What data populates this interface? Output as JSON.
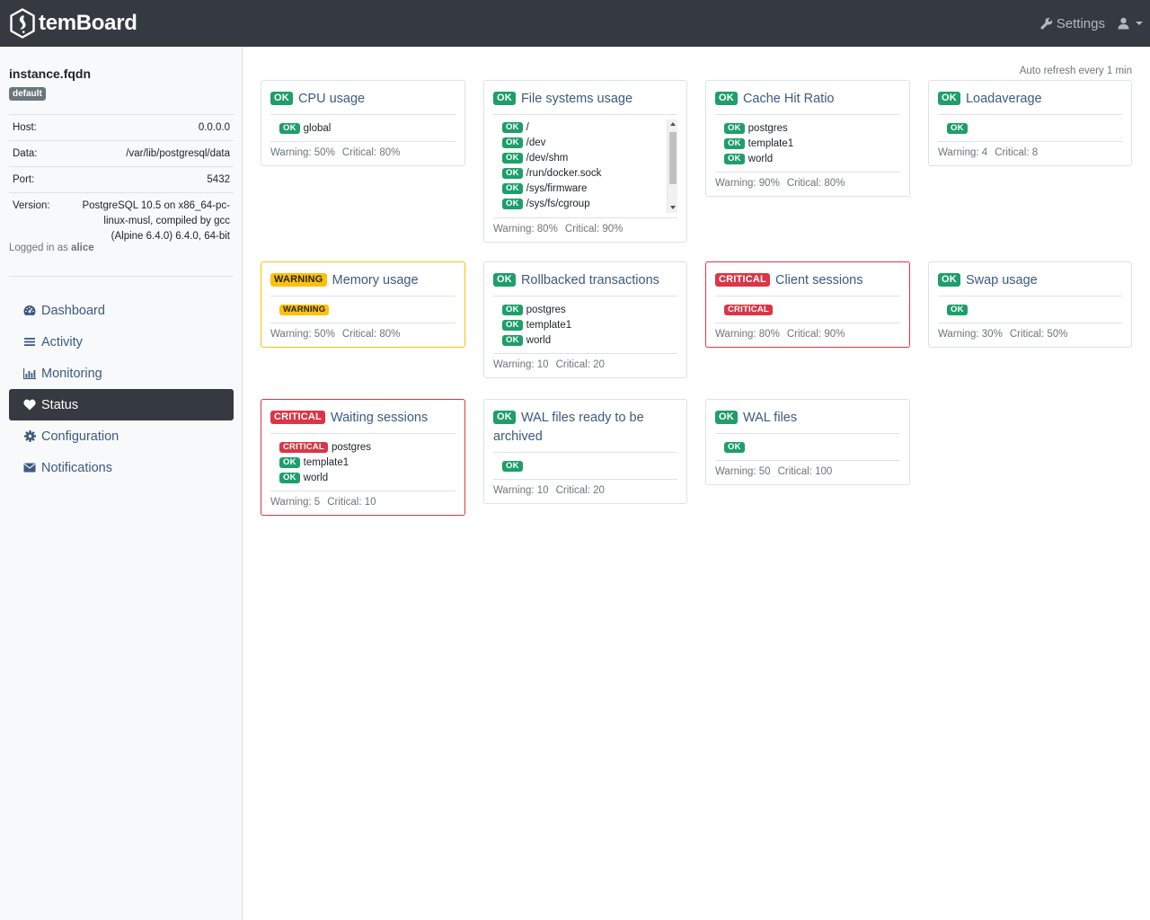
{
  "brand": {
    "name": "temBoard"
  },
  "topnav": {
    "settings_label": "Settings"
  },
  "instance": {
    "name": "instance.fqdn",
    "environment": "default",
    "info": [
      {
        "key": "Host:",
        "value": "0.0.0.0"
      },
      {
        "key": "Data:",
        "value": "/var/lib/postgresql/data"
      },
      {
        "key": "Port:",
        "value": "5432"
      },
      {
        "key": "Version:",
        "value": "PostgreSQL 10.5 on x86_64-pc-linux-musl, compiled by gcc (Alpine 6.4.0) 6.4.0, 64-bit"
      }
    ],
    "logged_prefix": "Logged in as",
    "user": "alice"
  },
  "sidebar": {
    "items": [
      {
        "label": "Dashboard",
        "icon": "dashboard-icon",
        "active": false
      },
      {
        "label": "Activity",
        "icon": "list-icon",
        "active": false
      },
      {
        "label": "Monitoring",
        "icon": "bar-chart-icon",
        "active": false
      },
      {
        "label": "Status",
        "icon": "heart-icon",
        "active": true
      },
      {
        "label": "Configuration",
        "icon": "gear-icon",
        "active": false
      },
      {
        "label": "Notifications",
        "icon": "envelope-icon",
        "active": false
      }
    ]
  },
  "main": {
    "auto_refresh": "Auto refresh every 1 min",
    "cards": [
      {
        "title": "CPU usage",
        "state": "OK",
        "items": [
          {
            "state": "OK",
            "name": "global"
          }
        ],
        "warning": "Warning: 50%",
        "critical": "Critical: 80%"
      },
      {
        "title": "File systems usage",
        "state": "OK",
        "items": [
          {
            "state": "OK",
            "name": "/"
          },
          {
            "state": "OK",
            "name": "/dev"
          },
          {
            "state": "OK",
            "name": "/dev/shm"
          },
          {
            "state": "OK",
            "name": "/run/docker.sock"
          },
          {
            "state": "OK",
            "name": "/sys/firmware"
          },
          {
            "state": "OK",
            "name": "/sys/fs/cgroup"
          }
        ],
        "warning": "Warning: 80%",
        "critical": "Critical: 90%"
      },
      {
        "title": "Cache Hit Ratio",
        "state": "OK",
        "items": [
          {
            "state": "OK",
            "name": "postgres"
          },
          {
            "state": "OK",
            "name": "template1"
          },
          {
            "state": "OK",
            "name": "world"
          }
        ],
        "warning": "Warning: 90%",
        "critical": "Critical: 80%"
      },
      {
        "title": "Loadaverage",
        "state": "OK",
        "items": [
          {
            "state": "OK",
            "name": ""
          }
        ],
        "warning": "Warning: 4",
        "critical": "Critical: 8"
      },
      {
        "title": "Memory usage",
        "state": "WARNING",
        "items": [
          {
            "state": "WARNING",
            "name": ""
          }
        ],
        "warning": "Warning: 50%",
        "critical": "Critical: 80%"
      },
      {
        "title": "Rollbacked transactions",
        "state": "OK",
        "items": [
          {
            "state": "OK",
            "name": "postgres"
          },
          {
            "state": "OK",
            "name": "template1"
          },
          {
            "state": "OK",
            "name": "world"
          }
        ],
        "warning": "Warning: 10",
        "critical": "Critical: 20"
      },
      {
        "title": "Client sessions",
        "state": "CRITICAL",
        "items": [
          {
            "state": "CRITICAL",
            "name": ""
          }
        ],
        "warning": "Warning: 80%",
        "critical": "Critical: 90%"
      },
      {
        "title": "Swap usage",
        "state": "OK",
        "items": [
          {
            "state": "OK",
            "name": ""
          }
        ],
        "warning": "Warning: 30%",
        "critical": "Critical: 50%"
      },
      {
        "title": "Waiting sessions",
        "state": "CRITICAL",
        "items": [
          {
            "state": "CRITICAL",
            "name": "postgres"
          },
          {
            "state": "OK",
            "name": "template1"
          },
          {
            "state": "OK",
            "name": "world"
          }
        ],
        "warning": "Warning: 5",
        "critical": "Critical: 10"
      },
      {
        "title": "WAL files ready to be archived",
        "state": "OK",
        "items": [
          {
            "state": "OK",
            "name": ""
          }
        ],
        "warning": "Warning: 10",
        "critical": "Critical: 20"
      },
      {
        "title": "WAL files",
        "state": "OK",
        "items": [
          {
            "state": "OK",
            "name": ""
          }
        ],
        "warning": "Warning: 50",
        "critical": "Critical: 100"
      }
    ]
  },
  "colors": {
    "topbar": "#343a40",
    "ok": "#1e9e6a",
    "warning": "#ffc107",
    "critical": "#dc3545",
    "link": "#3d5a80"
  }
}
